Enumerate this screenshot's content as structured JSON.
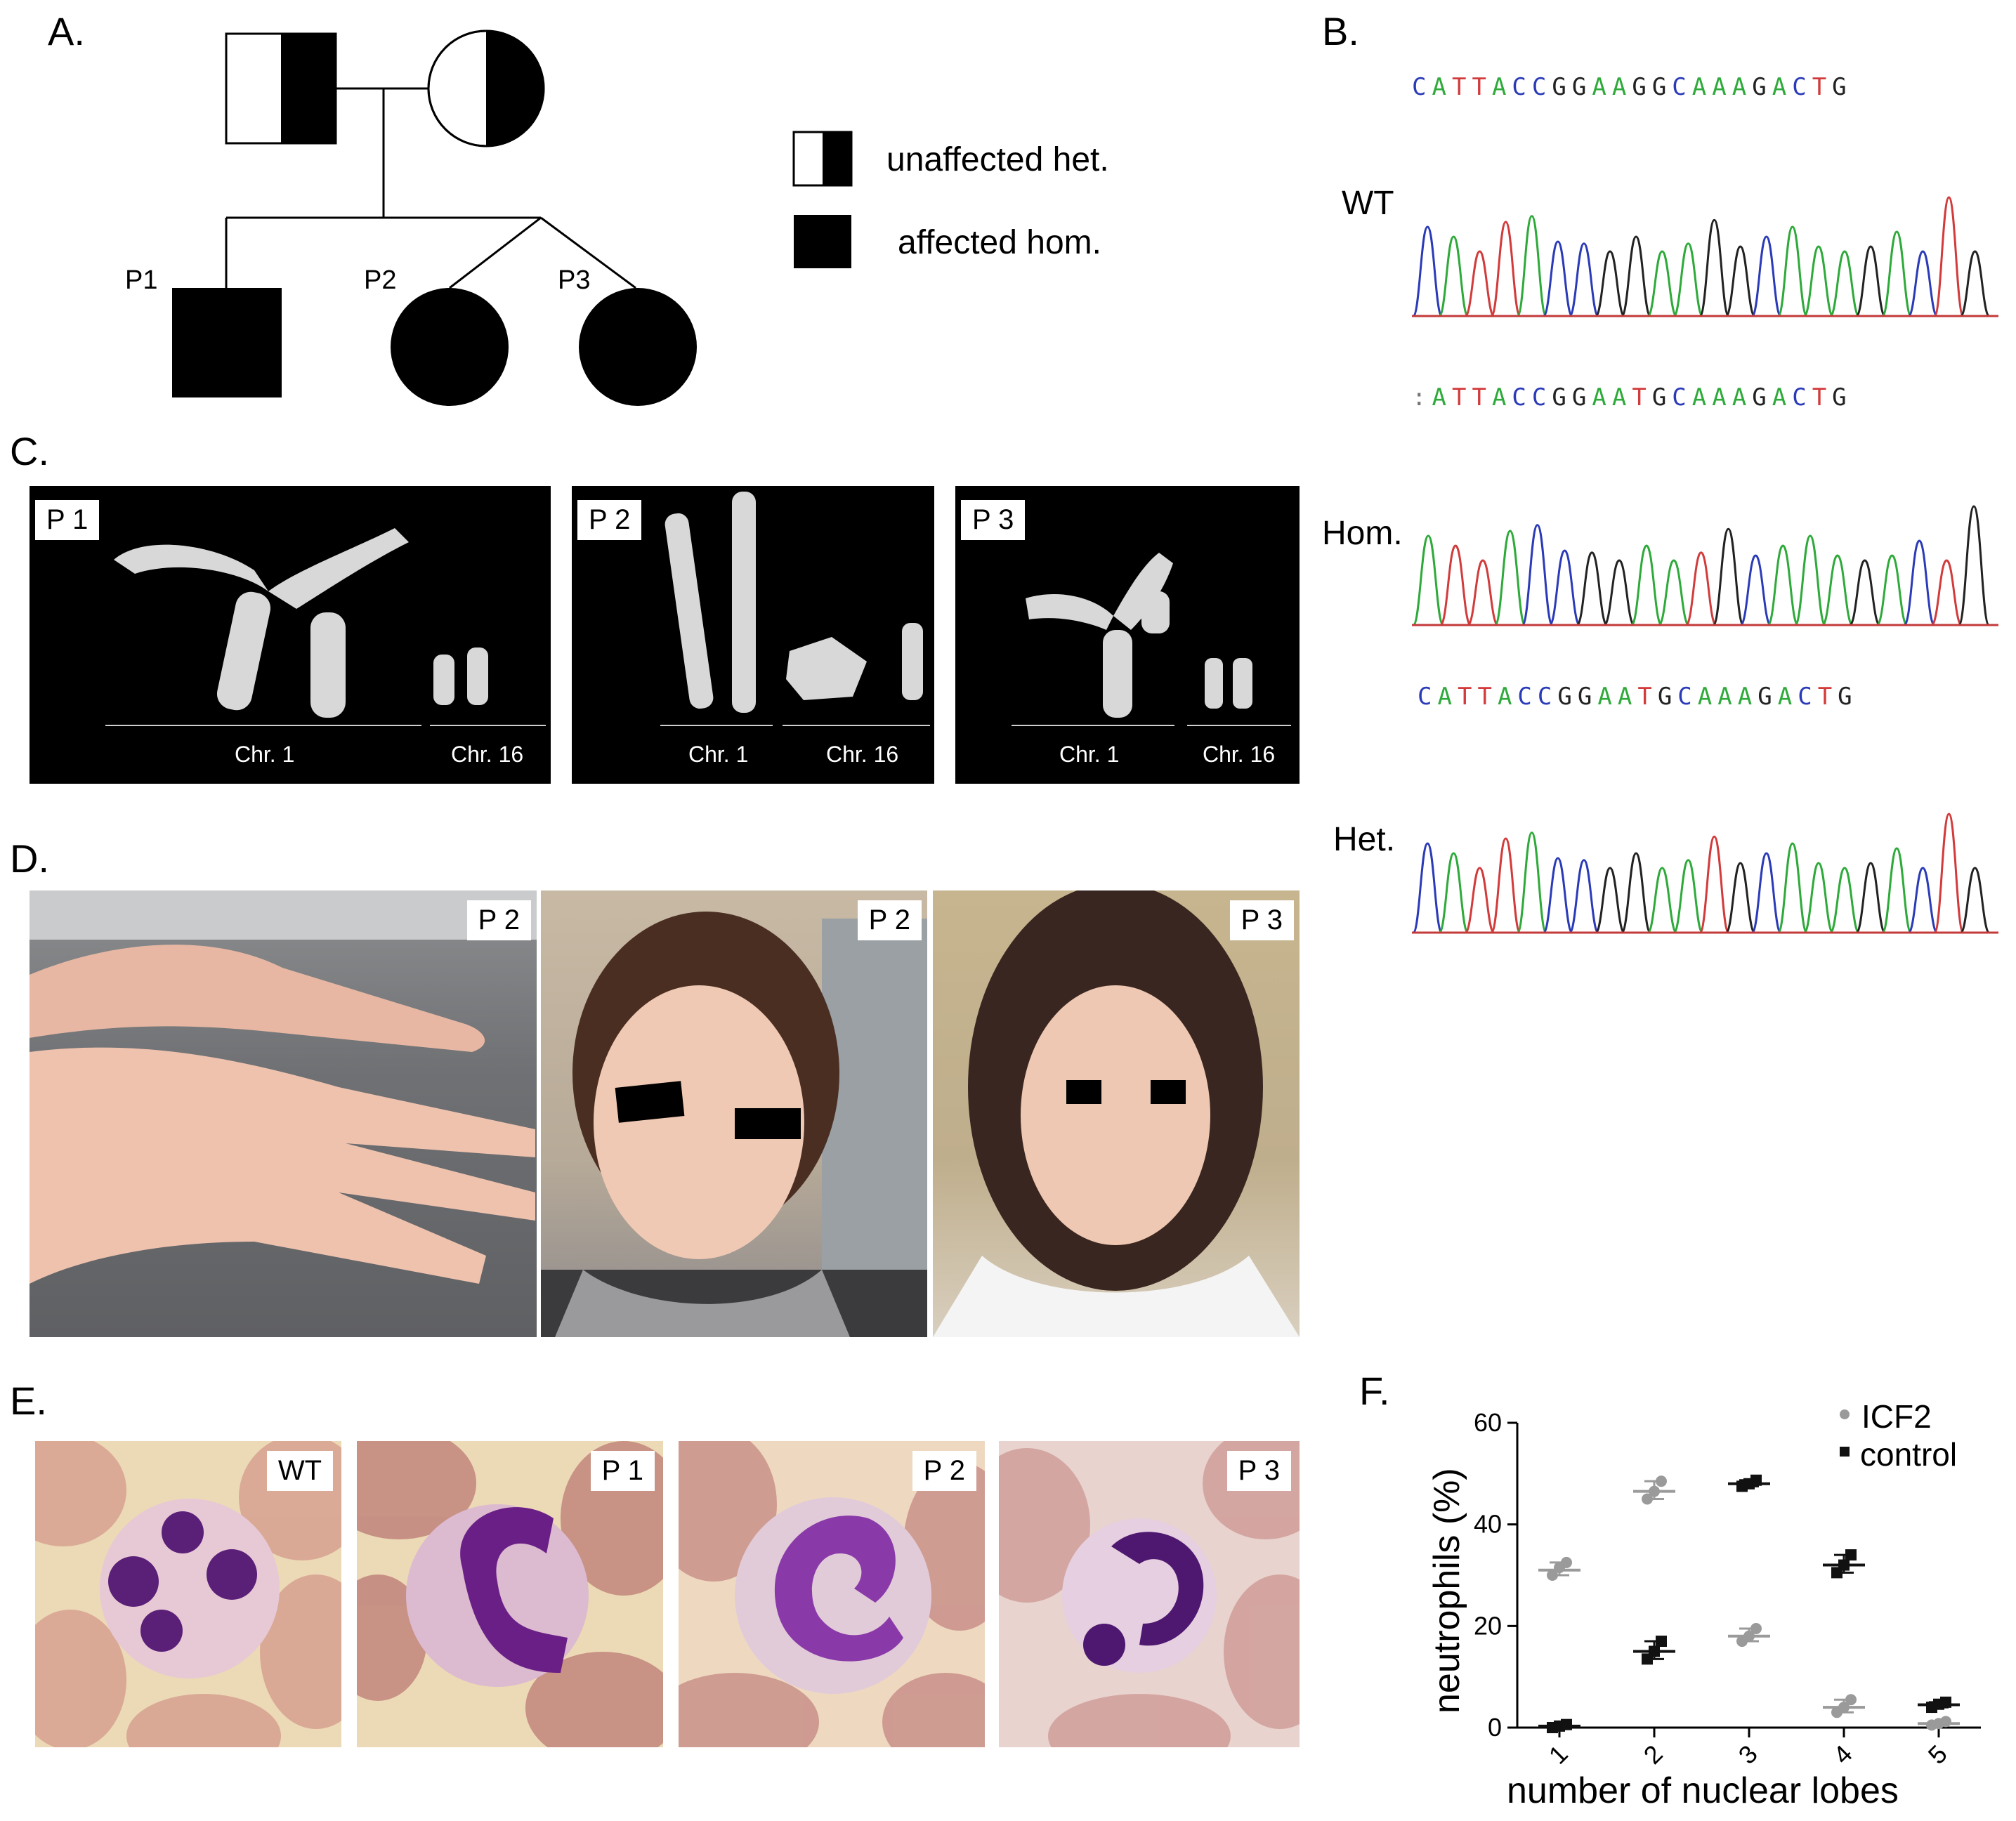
{
  "panels": {
    "a": "A.",
    "b": "B.",
    "c": "C.",
    "d": "D.",
    "e": "E.",
    "f": "F."
  },
  "pedigree": {
    "individuals": [
      "P1",
      "P2",
      "P3"
    ],
    "legend": [
      {
        "label": "unaffected het."
      },
      {
        "label": "affected hom."
      }
    ]
  },
  "sequencing": {
    "tracks": [
      {
        "label": "WT",
        "sequence": "CATTACCGGAAGGCAAAGACTG"
      },
      {
        "label": "Hom.",
        "sequence": ":ATTACCGGAATGCAAAGACTG"
      },
      {
        "label": "Het.",
        "sequence": "CATTACCGGAATGCAAAGACTG"
      }
    ],
    "base_colors": {
      "A": "#2eaa3a",
      "C": "#2b3bb8",
      "G": "#222222",
      "T": "#d23b3b"
    }
  },
  "karyotype": {
    "tiles": [
      {
        "tag": "P 1",
        "chr1": "Chr. 1",
        "chr16": "Chr. 16"
      },
      {
        "tag": "P 2",
        "chr1": "Chr. 1",
        "chr16": "Chr. 16"
      },
      {
        "tag": "P 3",
        "chr1": "Chr. 1",
        "chr16": "Chr. 16"
      }
    ]
  },
  "photos": {
    "tiles": [
      {
        "tag": "P 2"
      },
      {
        "tag": "P 2"
      },
      {
        "tag": "P 3"
      }
    ]
  },
  "smears": {
    "tiles": [
      {
        "tag": "WT"
      },
      {
        "tag": "P 1"
      },
      {
        "tag": "P 2"
      },
      {
        "tag": "P 3"
      }
    ]
  },
  "chart_data": {
    "type": "scatter",
    "title": "",
    "xlabel": "number of nuclear lobes",
    "ylabel": "neutrophils (%)",
    "categories": [
      "1",
      "2",
      "3",
      "4",
      "5"
    ],
    "ylim": [
      0,
      60
    ],
    "yticks": [
      "0",
      "20",
      "40",
      "60"
    ],
    "legend_position": "top-right",
    "series": [
      {
        "name": "ICF2",
        "color": "#9a9a9a",
        "means": [
          31,
          46.5,
          18,
          4,
          0.8
        ],
        "points": [
          [
            30,
            31.5,
            32.5
          ],
          [
            45,
            46.5,
            48.5
          ],
          [
            17,
            18,
            19.5
          ],
          [
            3,
            4,
            5.5
          ],
          [
            0.5,
            0.8,
            1.2
          ]
        ]
      },
      {
        "name": "control",
        "color": "#111111",
        "means": [
          0.3,
          15,
          48,
          32,
          4.5
        ],
        "points": [
          [
            0,
            0.3,
            0.6
          ],
          [
            13.5,
            15,
            17
          ],
          [
            47.5,
            48,
            48.7
          ],
          [
            30.5,
            32,
            34
          ],
          [
            4,
            4.6,
            5
          ]
        ]
      }
    ]
  }
}
